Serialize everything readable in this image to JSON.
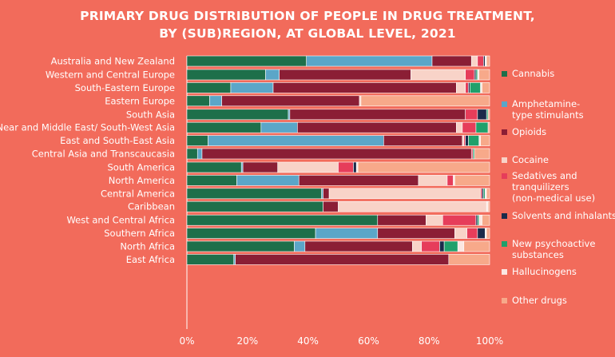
{
  "title_line1": "PRIMARY DRUG DISTRIBUTION OF PEOPLE IN DRUG TREATMENT,",
  "title_line2": "BY (SUB)REGION, AT GLOBAL LEVEL, 2021",
  "colors": {
    "background": "#F26B5B",
    "Cannabis": "#1E6F4A",
    "Amphetamine-type stimulants": "#5BA6C8",
    "Opioids": "#8B1E35",
    "Cocaine": "#F8D3C8",
    "Sedatives and tranquilizers (non-medical use)": "#E63D5A",
    "Solvents and inhalants": "#1B2A4A",
    "New psychoactive substances": "#1FA06B",
    "Hallucinogens": "#FBE7E2",
    "Other drugs": "#F7A98A"
  },
  "legend": [
    {
      "key": "Cannabis",
      "label": "Cannabis"
    },
    {
      "key": "Amphetamine-type stimulants",
      "label": "Amphetamine-\ntype stimulants"
    },
    {
      "key": "Opioids",
      "label": "Opioids"
    },
    {
      "key": "Cocaine",
      "label": "Cocaine"
    },
    {
      "key": "Sedatives and tranquilizers (non-medical use)",
      "label": "Sedatives and\ntranquilizers\n(non-medical use)"
    },
    {
      "key": "Solvents and inhalants",
      "label": "Solvents and inhalants"
    },
    {
      "key": "New psychoactive substances",
      "label": "New psychoactive\nsubstances"
    },
    {
      "key": "Hallucinogens",
      "label": "Hallucinogens"
    },
    {
      "key": "Other drugs",
      "label": "Other drugs"
    }
  ],
  "chart_data": {
    "type": "bar",
    "orientation": "horizontal",
    "stacked": true,
    "xlim": [
      0,
      100
    ],
    "xticks": [
      "0%",
      "20%",
      "40%",
      "60%",
      "80%",
      "100%"
    ],
    "groups": [
      [
        "Australia and New Zealand"
      ],
      [
        "Western and Central Europe",
        "South-Eastern Europe",
        "Eastern Europe"
      ],
      [
        "South Asia",
        "Near and Middle East/ South-West Asia",
        "East and South-East Asia",
        "Central Asia and Transcaucasia"
      ],
      [
        "South America",
        "North America",
        "Central America",
        "Caribbean"
      ],
      [
        "West and Central Africa",
        "Southern Africa",
        "North Africa",
        "East Africa"
      ]
    ],
    "series_order": [
      "Cannabis",
      "Amphetamine-type stimulants",
      "Opioids",
      "Cocaine",
      "Sedatives and tranquilizers (non-medical use)",
      "Solvents and inhalants",
      "New psychoactive substances",
      "Hallucinogens",
      "Other drugs"
    ],
    "rows": [
      {
        "label": "Australia and New Zealand",
        "values": [
          39.5,
          41.5,
          13,
          2,
          2,
          0.5,
          0,
          0.5,
          1
        ]
      },
      {
        "label": "Western and Central Europe",
        "values": [
          26,
          4.5,
          43.5,
          18,
          3,
          0.5,
          0.5,
          0.5,
          3.5
        ]
      },
      {
        "label": "South-Eastern Europe",
        "values": [
          14.5,
          14,
          60.5,
          3,
          1,
          0.5,
          3.5,
          0.5,
          2.5
        ]
      },
      {
        "label": "Eastern Europe",
        "values": [
          7.5,
          4,
          45.5,
          0.5,
          0,
          0,
          0,
          0,
          42.5
        ]
      },
      {
        "label": "South Asia",
        "values": [
          33.5,
          0.5,
          58,
          0,
          4,
          3,
          0.5,
          0,
          0.5
        ]
      },
      {
        "label": "Near and Middle East/ South-West Asia",
        "values": [
          24.5,
          12,
          52.5,
          2,
          4.5,
          0,
          4,
          0,
          0.5
        ]
      },
      {
        "label": "East and South-East Asia",
        "values": [
          7,
          58,
          26,
          0.5,
          0.5,
          1,
          3.5,
          0.5,
          3
        ]
      },
      {
        "label": "Central Asia and Transcaucasia",
        "values": [
          3.5,
          1.5,
          89,
          0,
          0.5,
          0,
          0.5,
          0,
          5
        ]
      },
      {
        "label": "South America",
        "values": [
          18,
          0.5,
          11.5,
          20,
          5,
          1,
          0,
          0.5,
          43.5
        ]
      },
      {
        "label": "North America",
        "values": [
          16.5,
          20.5,
          39.5,
          9.5,
          2,
          0,
          0,
          0.5,
          11.5
        ]
      },
      {
        "label": "Central America",
        "values": [
          44.5,
          0.5,
          2,
          50,
          0.5,
          0.5,
          0.5,
          0.5,
          1
        ]
      },
      {
        "label": "Caribbean",
        "values": [
          45,
          0,
          5,
          49,
          0,
          0,
          0,
          0.5,
          0.5
        ]
      },
      {
        "label": "West and Central Africa",
        "values": [
          63,
          0,
          16,
          5.5,
          11,
          0.5,
          0.5,
          1,
          2.5
        ]
      },
      {
        "label": "Southern Africa",
        "values": [
          42.5,
          20.5,
          25.5,
          4,
          3.5,
          2.5,
          0,
          0.5,
          1
        ]
      },
      {
        "label": "North Africa",
        "values": [
          35.5,
          3.5,
          35.5,
          3,
          6,
          1.5,
          4.5,
          2,
          8.5
        ]
      },
      {
        "label": "East Africa",
        "values": [
          15.5,
          0.5,
          70.5,
          0,
          0,
          0,
          0,
          0,
          13.5
        ]
      }
    ]
  }
}
